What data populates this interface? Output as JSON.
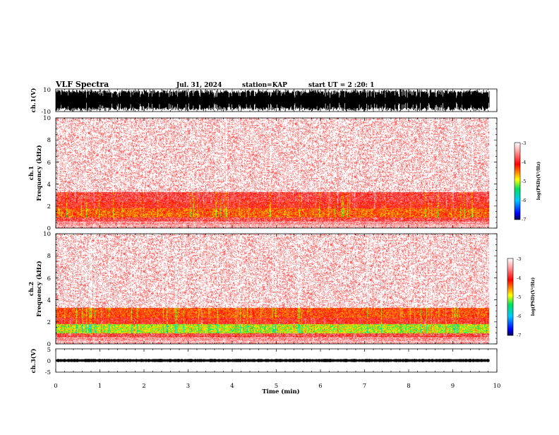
{
  "header": {
    "title": "VLF Spectra",
    "date": "Jul. 31, 2024",
    "station": "station=KAP",
    "start": "start UT =  2 :20: 1"
  },
  "chart_data": [
    {
      "type": "line",
      "panel": "waveform-ch1",
      "ylabel": "ch.1(V)",
      "ylim": [
        -10,
        10
      ],
      "ytick_labels": [
        "10",
        "-10"
      ],
      "xlim": [
        0,
        10
      ],
      "data_extent_min": 9.83
    },
    {
      "type": "heatmap",
      "panel": "spectrogram-ch1",
      "ylabel_line1": "ch.1",
      "ylabel_line2": "Frequency (kHz)",
      "ylim": [
        0,
        10
      ],
      "ytick_labels": [
        "0",
        "2",
        "4",
        "6",
        "8",
        "10"
      ],
      "xlim": [
        0,
        10
      ],
      "colorbar": {
        "label": "log(PSD)(V²/Hz)",
        "range": [
          -7,
          -3
        ],
        "tick_labels": [
          "-3",
          "-4",
          "-5",
          "-6",
          "-7"
        ]
      }
    },
    {
      "type": "heatmap",
      "panel": "spectrogram-ch2",
      "ylabel_line1": "ch.2",
      "ylabel_line2": "Frequency (kHz)",
      "ylim": [
        0,
        10
      ],
      "ytick_labels": [
        "0",
        "2",
        "4",
        "6",
        "8",
        "10"
      ],
      "xlim": [
        0,
        10
      ],
      "colorbar": {
        "label": "log(PSD)(V²/Hz)",
        "range": [
          -7,
          -3
        ],
        "tick_labels": [
          "-3",
          "-4",
          "-5",
          "-6",
          "-7"
        ]
      }
    },
    {
      "type": "line",
      "panel": "waveform-ch3",
      "ylabel": "ch.3(V)",
      "ylim": [
        -5,
        5
      ],
      "ytick_labels": [
        "5",
        "0",
        "-5"
      ],
      "xlim": [
        0,
        10
      ],
      "xlabel": "Time (min)",
      "xtick_labels": [
        "0",
        "1",
        "2",
        "3",
        "4",
        "5",
        "6",
        "7",
        "8",
        "9",
        "10"
      ]
    }
  ]
}
